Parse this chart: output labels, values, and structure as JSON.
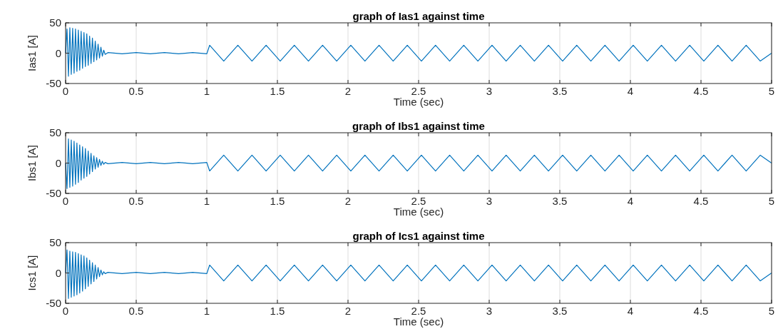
{
  "chart_data": [
    {
      "type": "line",
      "title": "graph of Ias1 against time",
      "xlabel": "Time (sec)",
      "ylabel": "Ias1 [A]",
      "xlim": [
        0,
        5
      ],
      "xticks": [
        0,
        0.5,
        1,
        1.5,
        2,
        2.5,
        3,
        3.5,
        4,
        4.5,
        5
      ],
      "ylim": [
        -50,
        50
      ],
      "yticks": [
        -50,
        0,
        50
      ],
      "grid": "x",
      "x": [
        0,
        0.01,
        0.02,
        0.03,
        0.04,
        0.05,
        0.06,
        0.07,
        0.08,
        0.09,
        0.1,
        0.11,
        0.12,
        0.13,
        0.14,
        0.15,
        0.16,
        0.17,
        0.18,
        0.19,
        0.2,
        0.21,
        0.22,
        0.23,
        0.24,
        0.25,
        0.26,
        0.27,
        0.28,
        0.3,
        0.4,
        0.5,
        0.6,
        0.7,
        0.8,
        0.9,
        1.0,
        1.02,
        1.12,
        1.22,
        1.32,
        1.42,
        1.52,
        1.62,
        1.72,
        1.82,
        1.92,
        2.02,
        2.12,
        2.22,
        2.32,
        2.42,
        2.52,
        2.62,
        2.72,
        2.82,
        2.92,
        3.02,
        3.12,
        3.22,
        3.32,
        3.42,
        3.52,
        3.62,
        3.72,
        3.82,
        3.92,
        4.02,
        4.12,
        4.22,
        4.32,
        4.42,
        4.52,
        4.62,
        4.72,
        4.82,
        4.92,
        5
      ],
      "series": [
        {
          "color": "#0072bd",
          "values": [
            0,
            40,
            -38,
            42,
            -35,
            41,
            -33,
            40,
            -30,
            38,
            -28,
            36,
            -25,
            34,
            -22,
            32,
            -20,
            28,
            -17,
            25,
            -14,
            20,
            -11,
            15,
            -8,
            10,
            -5,
            5,
            -2,
            1,
            -1,
            1,
            -1,
            1,
            -1,
            1,
            -1,
            13,
            -13,
            13,
            -13,
            13,
            -13,
            13,
            -13,
            13,
            -13,
            13,
            -13,
            13,
            -13,
            13,
            -13,
            13,
            -13,
            13,
            -13,
            13,
            -13,
            13,
            -13,
            13,
            -13,
            13,
            -13,
            13,
            -13,
            13,
            -13,
            13,
            -13,
            13,
            -13,
            13,
            -13,
            13,
            -13,
            0
          ]
        }
      ]
    },
    {
      "type": "line",
      "title": "graph of Ibs1 against time",
      "xlabel": "Time (sec)",
      "ylabel": "Ibs1 [A]",
      "xlim": [
        0,
        5
      ],
      "xticks": [
        0,
        0.5,
        1,
        1.5,
        2,
        2.5,
        3,
        3.5,
        4,
        4.5,
        5
      ],
      "ylim": [
        -50,
        50
      ],
      "yticks": [
        -50,
        0,
        50
      ],
      "grid": "x",
      "x": [
        0,
        0.01,
        0.02,
        0.03,
        0.04,
        0.05,
        0.06,
        0.07,
        0.08,
        0.09,
        0.1,
        0.11,
        0.12,
        0.13,
        0.14,
        0.15,
        0.16,
        0.17,
        0.18,
        0.19,
        0.2,
        0.21,
        0.22,
        0.23,
        0.24,
        0.25,
        0.26,
        0.27,
        0.28,
        0.3,
        0.4,
        0.5,
        0.6,
        0.7,
        0.8,
        0.9,
        1.0,
        1.02,
        1.12,
        1.22,
        1.32,
        1.42,
        1.52,
        1.62,
        1.72,
        1.82,
        1.92,
        2.02,
        2.12,
        2.22,
        2.32,
        2.42,
        2.52,
        2.62,
        2.72,
        2.82,
        2.92,
        3.02,
        3.12,
        3.22,
        3.32,
        3.42,
        3.52,
        3.62,
        3.72,
        3.82,
        3.92,
        4.02,
        4.12,
        4.22,
        4.32,
        4.42,
        4.52,
        4.62,
        4.72,
        4.82,
        4.92,
        5
      ],
      "series": [
        {
          "color": "#0072bd",
          "values": [
            0,
            -42,
            40,
            -40,
            38,
            -38,
            36,
            -35,
            33,
            -32,
            30,
            -28,
            27,
            -25,
            24,
            -22,
            20,
            -18,
            16,
            -14,
            12,
            -10,
            9,
            -7,
            6,
            -4,
            3,
            -2,
            1,
            -1,
            1,
            -1,
            1,
            -1,
            1,
            -1,
            1,
            -13,
            13,
            -13,
            13,
            -13,
            13,
            -13,
            13,
            -13,
            13,
            -13,
            13,
            -13,
            13,
            -13,
            13,
            -13,
            13,
            -13,
            13,
            -13,
            13,
            -13,
            13,
            -13,
            13,
            -13,
            13,
            -13,
            13,
            -13,
            13,
            -13,
            13,
            -13,
            13,
            -13,
            13,
            -13,
            13,
            0
          ]
        }
      ]
    },
    {
      "type": "line",
      "title": "graph of Ics1 against time",
      "xlabel": "Time (sec)",
      "ylabel": "Ics1 [A]",
      "xlim": [
        0,
        5
      ],
      "xticks": [
        0,
        0.5,
        1,
        1.5,
        2,
        2.5,
        3,
        3.5,
        4,
        4.5,
        5
      ],
      "ylim": [
        -50,
        50
      ],
      "yticks": [
        -50,
        0,
        50
      ],
      "grid": "x",
      "x": [
        0,
        0.01,
        0.02,
        0.03,
        0.04,
        0.05,
        0.06,
        0.07,
        0.08,
        0.09,
        0.1,
        0.11,
        0.12,
        0.13,
        0.14,
        0.15,
        0.16,
        0.17,
        0.18,
        0.19,
        0.2,
        0.21,
        0.22,
        0.23,
        0.24,
        0.25,
        0.26,
        0.27,
        0.28,
        0.3,
        0.4,
        0.5,
        0.6,
        0.7,
        0.8,
        0.9,
        1.0,
        1.02,
        1.12,
        1.22,
        1.32,
        1.42,
        1.52,
        1.62,
        1.72,
        1.82,
        1.92,
        2.02,
        2.12,
        2.22,
        2.32,
        2.42,
        2.52,
        2.62,
        2.72,
        2.82,
        2.92,
        3.02,
        3.12,
        3.22,
        3.32,
        3.42,
        3.52,
        3.62,
        3.72,
        3.82,
        3.92,
        4.02,
        4.12,
        4.22,
        4.32,
        4.42,
        4.52,
        4.62,
        4.72,
        4.82,
        4.92,
        5
      ],
      "series": [
        {
          "color": "#0072bd",
          "values": [
            0,
            38,
            -42,
            36,
            -40,
            35,
            -38,
            34,
            -36,
            32,
            -33,
            30,
            -30,
            28,
            -26,
            25,
            -22,
            21,
            -18,
            17,
            -14,
            13,
            -10,
            9,
            -6,
            5,
            -3,
            2,
            -1,
            1,
            -1,
            1,
            -1,
            1,
            -1,
            1,
            -1,
            13,
            -13,
            13,
            -13,
            13,
            -13,
            13,
            -13,
            13,
            -13,
            13,
            -13,
            13,
            -13,
            13,
            -13,
            13,
            -13,
            13,
            -13,
            13,
            -13,
            13,
            -13,
            13,
            -13,
            13,
            -13,
            13,
            -13,
            13,
            -13,
            13,
            -13,
            13,
            -13,
            13,
            -13,
            13,
            -13,
            0
          ]
        }
      ]
    }
  ]
}
